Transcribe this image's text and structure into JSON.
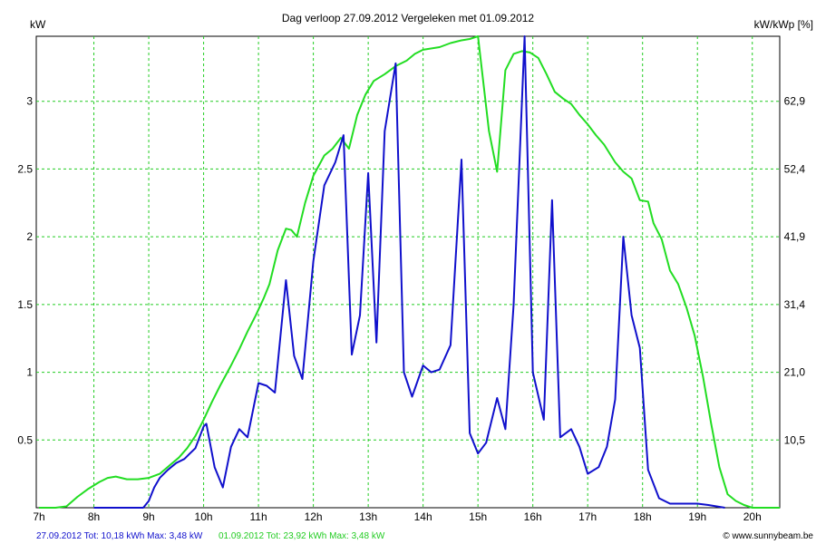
{
  "chart_data": {
    "type": "line",
    "title": "Dag  verloop 27.09.2012   Vergeleken met 01.09.2012",
    "ylabel_left": "kW",
    "ylabel_right": "kW/kWp [%]",
    "x_ticks": [
      "7h",
      "8h",
      "9h",
      "10h",
      "11h",
      "12h",
      "13h",
      "14h",
      "15h",
      "16h",
      "17h",
      "18h",
      "19h",
      "20h"
    ],
    "x_tick_values": [
      7,
      8,
      9,
      10,
      11,
      12,
      13,
      14,
      15,
      16,
      17,
      18,
      19,
      20
    ],
    "xlim": [
      6.95,
      20.5
    ],
    "ylim": [
      0,
      3.48
    ],
    "y_ticks_left": [
      "0.5",
      "1",
      "1.5",
      "2",
      "2.5",
      "3"
    ],
    "y_tick_values": [
      0.5,
      1,
      1.5,
      2,
      2.5,
      3
    ],
    "y_ticks_right": [
      "10,5",
      "21,0",
      "31,4",
      "41,9",
      "52,4",
      "62,9"
    ],
    "grid": true,
    "series": [
      {
        "name": "01.09.2012",
        "color": "#22dd22",
        "x": [
          7.0,
          7.3,
          7.5,
          7.7,
          7.9,
          8.1,
          8.25,
          8.4,
          8.6,
          8.8,
          9.0,
          9.2,
          9.4,
          9.55,
          9.7,
          9.85,
          10.0,
          10.15,
          10.3,
          10.5,
          10.65,
          10.8,
          10.95,
          11.1,
          11.2,
          11.35,
          11.5,
          11.6,
          11.7,
          11.85,
          12.0,
          12.2,
          12.35,
          12.5,
          12.65,
          12.8,
          12.95,
          13.1,
          13.3,
          13.5,
          13.7,
          13.85,
          14.0,
          14.3,
          14.5,
          14.7,
          14.85,
          15.0,
          15.2,
          15.35,
          15.5,
          15.65,
          15.8,
          15.95,
          16.1,
          16.25,
          16.4,
          16.55,
          16.7,
          16.85,
          17.0,
          17.15,
          17.3,
          17.5,
          17.65,
          17.8,
          17.95,
          18.1,
          18.2,
          18.35,
          18.5,
          18.65,
          18.8,
          18.95,
          19.1,
          19.25,
          19.4,
          19.55,
          19.7,
          19.85,
          20.0,
          20.2,
          20.5
        ],
        "values": [
          0.0,
          0.0,
          0.01,
          0.08,
          0.14,
          0.19,
          0.22,
          0.23,
          0.21,
          0.21,
          0.22,
          0.25,
          0.32,
          0.37,
          0.44,
          0.53,
          0.65,
          0.78,
          0.9,
          1.05,
          1.17,
          1.3,
          1.42,
          1.55,
          1.65,
          1.9,
          2.06,
          2.05,
          2.0,
          2.25,
          2.45,
          2.6,
          2.65,
          2.73,
          2.65,
          2.9,
          3.05,
          3.15,
          3.2,
          3.26,
          3.3,
          3.35,
          3.38,
          3.4,
          3.43,
          3.45,
          3.46,
          3.48,
          2.78,
          2.48,
          3.23,
          3.35,
          3.37,
          3.36,
          3.32,
          3.2,
          3.07,
          3.02,
          2.98,
          2.9,
          2.83,
          2.75,
          2.68,
          2.55,
          2.48,
          2.43,
          2.27,
          2.26,
          2.1,
          1.98,
          1.75,
          1.65,
          1.48,
          1.27,
          0.97,
          0.62,
          0.3,
          0.1,
          0.05,
          0.02,
          0.0,
          0.0,
          0.0
        ]
      },
      {
        "name": "27.09.2012",
        "color": "#1010cc",
        "x": [
          8.0,
          8.5,
          8.9,
          9.0,
          9.1,
          9.2,
          9.35,
          9.5,
          9.65,
          9.75,
          9.85,
          10.0,
          10.05,
          10.2,
          10.35,
          10.5,
          10.65,
          10.8,
          11.0,
          11.15,
          11.3,
          11.5,
          11.65,
          11.8,
          12.0,
          12.2,
          12.4,
          12.55,
          12.7,
          12.85,
          13.0,
          13.15,
          13.3,
          13.5,
          13.65,
          13.8,
          14.0,
          14.15,
          14.3,
          14.5,
          14.7,
          14.85,
          15.0,
          15.15,
          15.35,
          15.5,
          15.65,
          15.85,
          16.0,
          16.2,
          16.35,
          16.5,
          16.7,
          16.85,
          17.0,
          17.2,
          17.35,
          17.5,
          17.65,
          17.8,
          17.95,
          18.1,
          18.3,
          18.5,
          19.0,
          19.2,
          19.5
        ],
        "values": [
          0.0,
          0.0,
          0.0,
          0.05,
          0.15,
          0.22,
          0.28,
          0.33,
          0.36,
          0.4,
          0.44,
          0.6,
          0.62,
          0.3,
          0.15,
          0.45,
          0.58,
          0.52,
          0.92,
          0.9,
          0.85,
          1.68,
          1.12,
          0.95,
          1.82,
          2.38,
          2.55,
          2.75,
          1.13,
          1.42,
          2.47,
          1.22,
          2.78,
          3.28,
          1.0,
          0.82,
          1.05,
          1.0,
          1.02,
          1.2,
          2.57,
          0.55,
          0.4,
          0.48,
          0.81,
          0.58,
          1.5,
          3.48,
          1.0,
          0.65,
          2.27,
          0.52,
          0.58,
          0.45,
          0.25,
          0.3,
          0.45,
          0.8,
          2.0,
          1.42,
          1.18,
          0.28,
          0.07,
          0.03,
          0.03,
          0.02,
          0.0
        ]
      }
    ]
  },
  "footer": {
    "left_blue": "27.09.2012 Tot: 10,18 kWh Max: 3,48 kW",
    "left_green": "01.09.2012 Tot: 23,92 kWh Max: 3,48 kW",
    "right": "© www.sunnybeam.be"
  }
}
